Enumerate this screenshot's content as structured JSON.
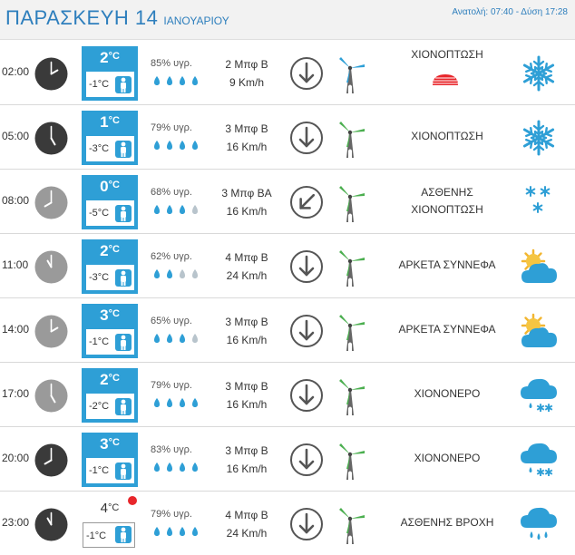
{
  "day": {
    "weekday": "ΠΑΡΑΣΚΕΥΗ 14",
    "month": "ΙΑΝΟΥΑΡΙΟΥ",
    "sun": "Ανατολή: 07:40 - Δύση 17:28"
  },
  "colors": {
    "accent": "#2e9fd6",
    "title": "#2e7fbd",
    "wind_dir": "#555555",
    "turbine": "#4caf50"
  },
  "rows": [
    {
      "time": "02:00",
      "clock": "dark",
      "temp": "2",
      "temp_min": "-1°C",
      "temp_style": "blue",
      "humidity": "85% υγρ.",
      "drops": 4,
      "wind_bf": "2 Μπφ Β",
      "wind_kmh": "9 Km/h",
      "wind_dir": "N",
      "condition": [
        "ΧΙΟΝΟΠΤΩΣΗ"
      ],
      "icon": "snowflake-icon",
      "warning": true
    },
    {
      "time": "05:00",
      "clock": "dark",
      "temp": "1",
      "temp_min": "-3°C",
      "temp_style": "blue",
      "humidity": "79% υγρ.",
      "drops": 4,
      "wind_bf": "3 Μπφ Β",
      "wind_kmh": "16 Km/h",
      "wind_dir": "N",
      "condition": [
        "ΧΙΟΝΟΠΤΩΣΗ"
      ],
      "icon": "snowflake-icon",
      "warning": false
    },
    {
      "time": "08:00",
      "clock": "light",
      "temp": "0",
      "temp_min": "-5°C",
      "temp_style": "blue",
      "humidity": "68% υγρ.",
      "drops": 3,
      "wind_bf": "3 Μπφ ΒΑ",
      "wind_kmh": "16 Km/h",
      "wind_dir": "NE",
      "condition": [
        "ΑΣΘΕΝΗΣ",
        "ΧΙΟΝΟΠΤΩΣΗ"
      ],
      "icon": "light-snow-icon",
      "warning": false
    },
    {
      "time": "11:00",
      "clock": "light",
      "temp": "2",
      "temp_min": "-3°C",
      "temp_style": "blue",
      "humidity": "62% υγρ.",
      "drops": 2,
      "wind_bf": "4 Μπφ Β",
      "wind_kmh": "24 Km/h",
      "wind_dir": "N",
      "condition": [
        "ΑΡΚΕΤΑ ΣΥΝΝΕΦΑ"
      ],
      "icon": "sun-cloud-icon",
      "warning": false
    },
    {
      "time": "14:00",
      "clock": "light",
      "temp": "3",
      "temp_min": "-1°C",
      "temp_style": "blue",
      "humidity": "65% υγρ.",
      "drops": 3,
      "wind_bf": "3 Μπφ Β",
      "wind_kmh": "16 Km/h",
      "wind_dir": "N",
      "condition": [
        "ΑΡΚΕΤΑ ΣΥΝΝΕΦΑ"
      ],
      "icon": "sun-cloud-icon",
      "warning": false
    },
    {
      "time": "17:00",
      "clock": "light",
      "temp": "2",
      "temp_min": "-2°C",
      "temp_style": "blue",
      "humidity": "79% υγρ.",
      "drops": 4,
      "wind_bf": "3 Μπφ Β",
      "wind_kmh": "16 Km/h",
      "wind_dir": "N",
      "condition": [
        "ΧΙΟΝΟΝΕΡΟ"
      ],
      "icon": "sleet-icon",
      "warning": false
    },
    {
      "time": "20:00",
      "clock": "dark",
      "temp": "3",
      "temp_min": "-1°C",
      "temp_style": "blue",
      "humidity": "83% υγρ.",
      "drops": 4,
      "wind_bf": "3 Μπφ Β",
      "wind_kmh": "16 Km/h",
      "wind_dir": "N",
      "condition": [
        "ΧΙΟΝΟΝΕΡΟ"
      ],
      "icon": "sleet-icon",
      "warning": false
    },
    {
      "time": "23:00",
      "clock": "dark",
      "temp": "4",
      "temp_min": "-1°C",
      "temp_style": "light",
      "humidity": "79% υγρ.",
      "drops": 4,
      "wind_bf": "4 Μπφ Β",
      "wind_kmh": "24 Km/h",
      "wind_dir": "N",
      "condition": [
        "ΑΣΘΕΝΗΣ ΒΡΟΧΗ"
      ],
      "icon": "rain-cloud-icon",
      "warning": false,
      "alert_dot": true
    }
  ]
}
